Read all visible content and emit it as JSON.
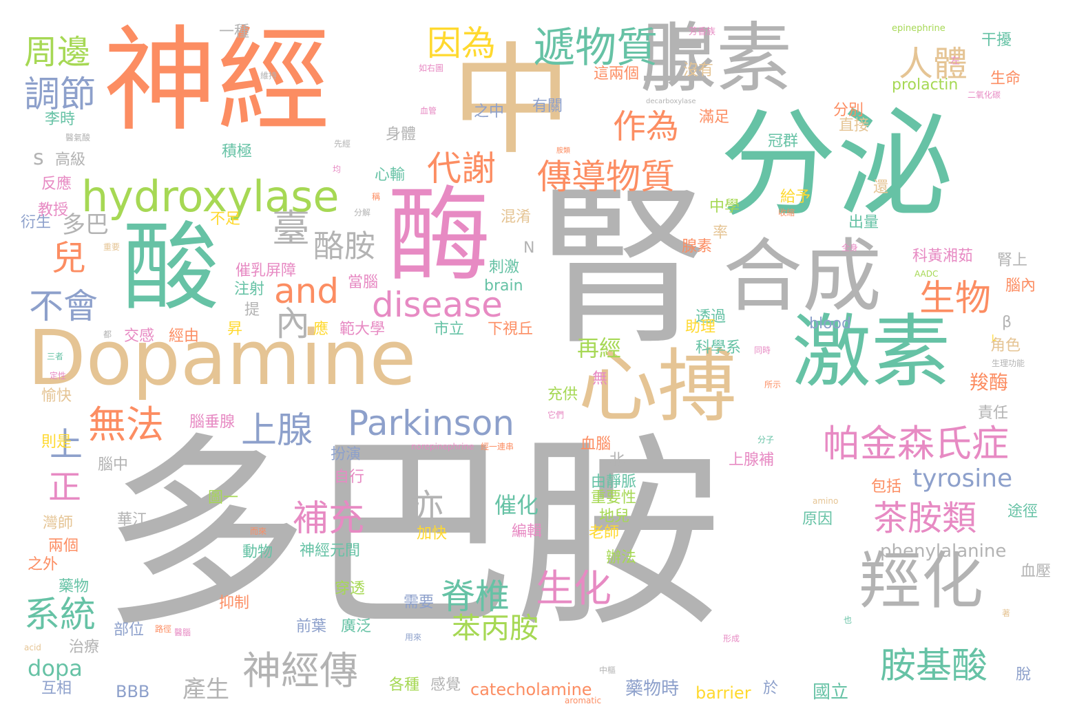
{
  "palette": {
    "gray": "#b3b3b3",
    "teal": "#66c2a5",
    "orange": "#fc8d62",
    "tan": "#e5c494",
    "pink": "#e78ac3",
    "lime": "#a6d854",
    "yellow": "#ffd92f",
    "blue": "#8da0cb"
  },
  "words": [
    "多巴胺",
    "腎",
    "分泌",
    "神經",
    "中",
    "酶",
    "酸",
    "Dopamine",
    "腺素",
    "激素",
    "合成",
    "心搏",
    "羥化",
    "上",
    "hydroxylase",
    "遞物質",
    "周邊",
    "因為",
    "人體",
    "調節",
    "作為",
    "代謝",
    "傳導物質",
    "臺",
    "酪胺",
    "兒",
    "and",
    "disease",
    "生物",
    "不會",
    "內",
    "Parkinson",
    "帕金森氏症",
    "無法",
    "上腺",
    "上",
    "正",
    "亦",
    "tyrosine",
    "補充",
    "茶胺類",
    "催化",
    "生化",
    "脊椎",
    "系統",
    "神經傳",
    "胺基酸",
    "苯丙胺",
    "dopa",
    "phenylalanine",
    "catecholamine",
    "barrier",
    "BBB",
    "產生",
    "藥物時",
    "國立",
    "一種",
    "芳香族",
    "epinephrine",
    "干擾",
    "左",
    "生命",
    "如右圖",
    "維持",
    "這兩個",
    "沒有",
    "prolactin",
    "有關",
    "之中",
    "血管",
    "李時",
    "高級",
    "積極",
    "身體",
    "滿足",
    "冠群",
    "分別",
    "直接",
    "s",
    "多巴",
    "心輸",
    "給予",
    "還",
    "中學",
    "腦內",
    "腦垂腺",
    "透過",
    "助理",
    "科學系",
    "再經",
    "羧酶",
    "充供",
    "角色",
    "責任",
    "原因",
    "途徑",
    "重要性",
    "地兒",
    "老師",
    "辦法",
    "編輯",
    "加快",
    "動物",
    "神經元間",
    "穿透",
    "廣泛",
    "需要",
    "前葉",
    "部位",
    "路徑",
    "治療",
    "各種",
    "感覺",
    "互相",
    "兩個",
    "之外",
    "灣師",
    "華江",
    "腦中",
    "扮演",
    "自行",
    "上腺補",
    "包括",
    "由靜脈",
    "抑制",
    "藥物",
    "刺激",
    "brain",
    "blood",
    "市立",
    "下視丘",
    "範大學",
    "應",
    "經由",
    "交感",
    "注射",
    "催乳屏障",
    "當腦",
    "混淆",
    "出量",
    "腺素",
    "科黃湘茹",
    "腎上",
    "率",
    "教授",
    "反應",
    "衍生",
    "重要",
    "不足",
    "血腦",
    "北",
    "圖一",
    "而來",
    "愉快",
    "定性",
    "三者",
    "則是",
    "脫",
    "於",
    "血壓",
    "中樞",
    "形成",
    "也",
    "著",
    "用來",
    "aromatic",
    "acid",
    "amino",
    "N",
    "β",
    "無",
    "它們",
    "所示",
    "分子",
    "經一連串",
    "norepinephrine",
    "AADC",
    "L",
    "生理功能",
    "同時",
    "decarboxylase",
    "二氧化碳",
    "分解",
    "收縮",
    "全身",
    "都",
    "提",
    "昇",
    "稱",
    "胺類",
    "先經",
    "醫氣酸",
    "均",
    "醫腦"
  ]
}
